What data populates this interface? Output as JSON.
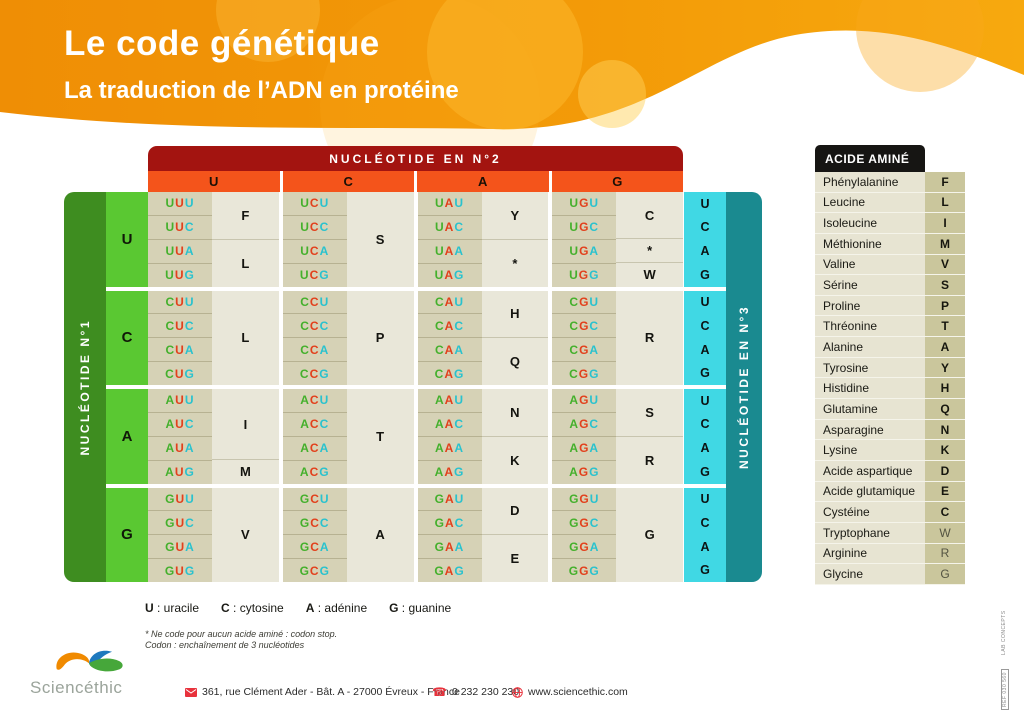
{
  "header": {
    "title": "Le code génétique",
    "subtitle": "La traduction de l’ADN en protéine"
  },
  "table": {
    "top_axis": "NUCLÉOTIDE EN N°2",
    "left_axis": "NUCLÉOTIDE N°1",
    "right_axis": "NUCLÉOTIDE EN N°3",
    "col_headers": [
      "U",
      "C",
      "A",
      "G"
    ],
    "third_headers": [
      "U",
      "C",
      "A",
      "G"
    ],
    "rows": [
      {
        "header": "U",
        "groups": [
          {
            "codons": [
              "UUU",
              "UUC",
              "UUA",
              "UUG"
            ],
            "aminos": [
              {
                "label": "F",
                "span": 2
              },
              {
                "label": "L",
                "span": 2
              }
            ]
          },
          {
            "codons": [
              "UCU",
              "UCC",
              "UCA",
              "UCG"
            ],
            "aminos": [
              {
                "label": "S",
                "span": 4
              }
            ]
          },
          {
            "codons": [
              "UAU",
              "UAC",
              "UAA",
              "UAG"
            ],
            "aminos": [
              {
                "label": "Y",
                "span": 2
              },
              {
                "label": "*",
                "span": 2
              }
            ]
          },
          {
            "codons": [
              "UGU",
              "UGC",
              "UGA",
              "UGG"
            ],
            "aminos": [
              {
                "label": "C",
                "span": 2
              },
              {
                "label": "*",
                "span": 1
              },
              {
                "label": "W",
                "span": 1
              }
            ]
          }
        ]
      },
      {
        "header": "C",
        "groups": [
          {
            "codons": [
              "CUU",
              "CUC",
              "CUA",
              "CUG"
            ],
            "aminos": [
              {
                "label": "L",
                "span": 4
              }
            ]
          },
          {
            "codons": [
              "CCU",
              "CCC",
              "CCA",
              "CCG"
            ],
            "aminos": [
              {
                "label": "P",
                "span": 4
              }
            ]
          },
          {
            "codons": [
              "CAU",
              "CAC",
              "CAA",
              "CAG"
            ],
            "aminos": [
              {
                "label": "H",
                "span": 2
              },
              {
                "label": "Q",
                "span": 2
              }
            ]
          },
          {
            "codons": [
              "CGU",
              "CGC",
              "CGA",
              "CGG"
            ],
            "aminos": [
              {
                "label": "R",
                "span": 4
              }
            ]
          }
        ]
      },
      {
        "header": "A",
        "groups": [
          {
            "codons": [
              "AUU",
              "AUC",
              "AUA",
              "AUG"
            ],
            "aminos": [
              {
                "label": "I",
                "span": 3
              },
              {
                "label": "M",
                "span": 1
              }
            ]
          },
          {
            "codons": [
              "ACU",
              "ACC",
              "ACA",
              "ACG"
            ],
            "aminos": [
              {
                "label": "T",
                "span": 4
              }
            ]
          },
          {
            "codons": [
              "AAU",
              "AAC",
              "AAA",
              "AAG"
            ],
            "aminos": [
              {
                "label": "N",
                "span": 2
              },
              {
                "label": "K",
                "span": 2
              }
            ]
          },
          {
            "codons": [
              "AGU",
              "AGC",
              "AGA",
              "AGG"
            ],
            "aminos": [
              {
                "label": "S",
                "span": 2
              },
              {
                "label": "R",
                "span": 2
              }
            ]
          }
        ]
      },
      {
        "header": "G",
        "groups": [
          {
            "codons": [
              "GUU",
              "GUC",
              "GUA",
              "GUG"
            ],
            "aminos": [
              {
                "label": "V",
                "span": 4
              }
            ]
          },
          {
            "codons": [
              "GCU",
              "GCC",
              "GCA",
              "GCG"
            ],
            "aminos": [
              {
                "label": "A",
                "span": 4
              }
            ]
          },
          {
            "codons": [
              "GAU",
              "GAC",
              "GAA",
              "GAG"
            ],
            "aminos": [
              {
                "label": "D",
                "span": 2
              },
              {
                "label": "E",
                "span": 2
              }
            ]
          },
          {
            "codons": [
              "GGU",
              "GGC",
              "GGA",
              "GGG"
            ],
            "aminos": [
              {
                "label": "G",
                "span": 4
              }
            ]
          }
        ]
      }
    ]
  },
  "amino_table": {
    "title": "ACIDE AMINÉ",
    "rows": [
      {
        "name": "Phénylalanine",
        "letter": "F"
      },
      {
        "name": "Leucine",
        "letter": "L"
      },
      {
        "name": "Isoleucine",
        "letter": "I"
      },
      {
        "name": "Méthionine",
        "letter": "M"
      },
      {
        "name": "Valine",
        "letter": "V"
      },
      {
        "name": "Sérine",
        "letter": "S"
      },
      {
        "name": "Proline",
        "letter": "P"
      },
      {
        "name": "Thréonine",
        "letter": "T"
      },
      {
        "name": "Alanine",
        "letter": "A"
      },
      {
        "name": "Tyrosine",
        "letter": "Y"
      },
      {
        "name": "Histidine",
        "letter": "H"
      },
      {
        "name": "Glutamine",
        "letter": "Q"
      },
      {
        "name": "Asparagine",
        "letter": "N"
      },
      {
        "name": "Lysine",
        "letter": "K"
      },
      {
        "name": "Acide aspartique",
        "letter": "D"
      },
      {
        "name": "Acide glutamique",
        "letter": "E"
      },
      {
        "name": "Cystéine",
        "letter": "C"
      },
      {
        "name": "Tryptophane",
        "letter": "W",
        "light": true
      },
      {
        "name": "Arginine",
        "letter": "R",
        "light": true
      },
      {
        "name": "Glycine",
        "letter": "G",
        "light": true
      }
    ]
  },
  "legend": [
    {
      "letter": "U",
      "name": "uracile"
    },
    {
      "letter": "C",
      "name": "cytosine"
    },
    {
      "letter": "A",
      "name": "adénine"
    },
    {
      "letter": "G",
      "name": "guanine"
    }
  ],
  "footnotes": [
    "* Ne code pour aucun acide aminé : codon stop.",
    "Codon : enchaînement de 3 nucléotides"
  ],
  "footer": {
    "brand": "Sciencéthic",
    "address": "361, rue Clément Ader - Bât. A - 27000 Évreux - France",
    "phone": "0 232 230 230",
    "website": "www.sciencethic.com"
  },
  "side_codes": {
    "line1": "LAB CONCEPTS",
    "line2": "REF 030 560"
  },
  "palette": {
    "deep_red": "#A31410",
    "orange_red": "#F4541B",
    "dark_green": "#3E8D20",
    "bright_green": "#5AC832",
    "cyan": "#40D8E4",
    "teal": "#1A8A90",
    "khaki_cell": "#D6D2B6",
    "beige_cell": "#E9E7D9",
    "amino_name_bg": "#E7E4D2",
    "amino_letter_bg": "#CAC69C",
    "pos1": "#44B02C",
    "pos2": "#E2401C",
    "pos3": "#29C2CE",
    "accent_red": "#E8323C"
  }
}
